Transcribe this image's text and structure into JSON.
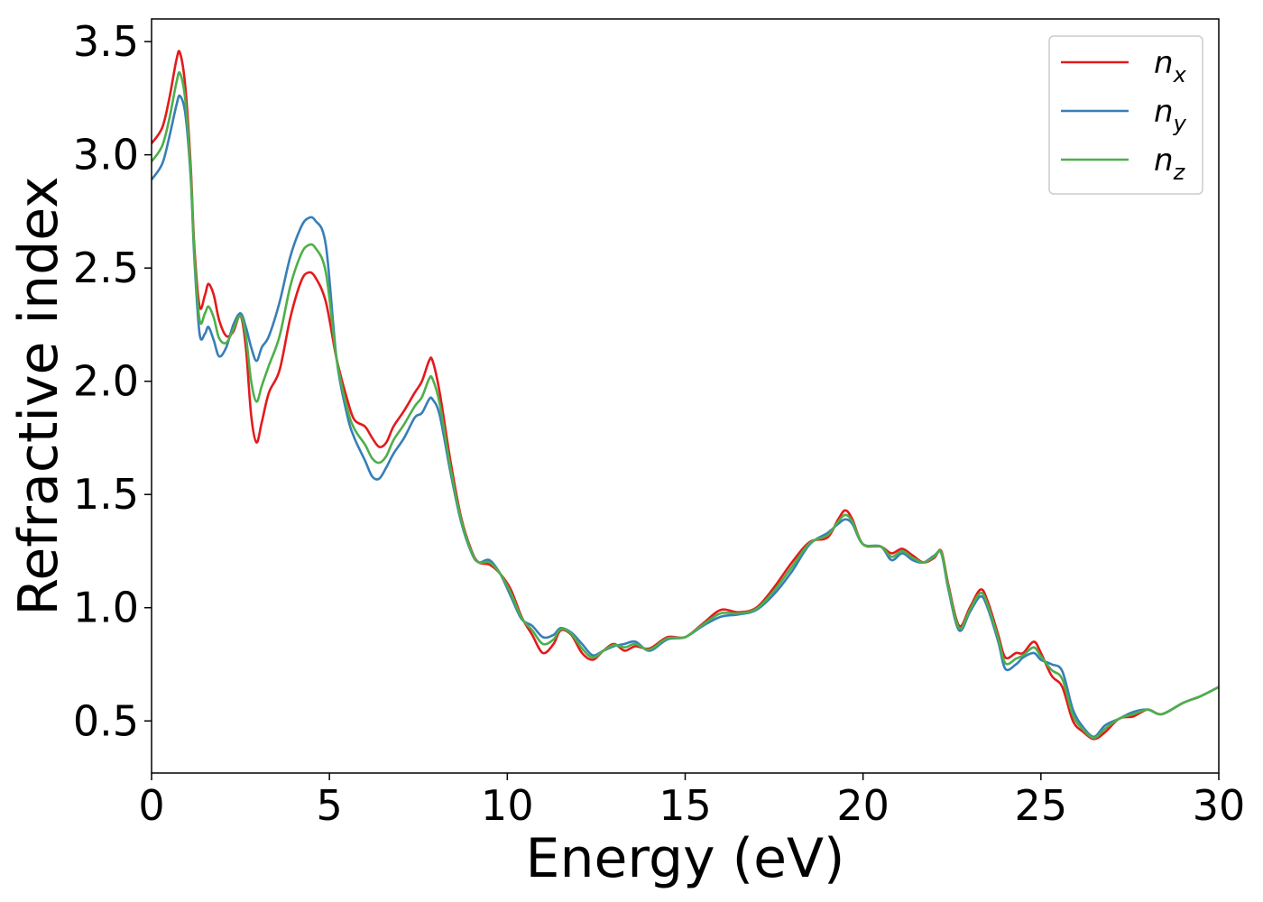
{
  "chart_data": {
    "type": "line",
    "xlabel": "Energy (eV)",
    "ylabel": "Refractive index",
    "xlim": [
      0,
      30
    ],
    "ylim": [
      0.27,
      3.6
    ],
    "xticks": [
      "0",
      "5",
      "10",
      "15",
      "20",
      "25",
      "30"
    ],
    "yticks": [
      "0.5",
      "1.0",
      "1.5",
      "2.0",
      "2.5",
      "3.0",
      "3.5"
    ],
    "grid": false,
    "legend_position": "top-right",
    "series": [
      {
        "name": "n",
        "subscript": "x",
        "color": "#e41a1c",
        "points": [
          [
            0,
            3.05
          ],
          [
            0.3,
            3.12
          ],
          [
            0.5,
            3.25
          ],
          [
            0.7,
            3.42
          ],
          [
            0.8,
            3.45
          ],
          [
            0.95,
            3.3
          ],
          [
            1.1,
            2.95
          ],
          [
            1.2,
            2.6
          ],
          [
            1.35,
            2.33
          ],
          [
            1.5,
            2.38
          ],
          [
            1.6,
            2.43
          ],
          [
            1.75,
            2.38
          ],
          [
            1.9,
            2.27
          ],
          [
            2.1,
            2.2
          ],
          [
            2.3,
            2.22
          ],
          [
            2.5,
            2.29
          ],
          [
            2.65,
            2.15
          ],
          [
            2.8,
            1.85
          ],
          [
            2.95,
            1.73
          ],
          [
            3.1,
            1.82
          ],
          [
            3.3,
            1.95
          ],
          [
            3.6,
            2.05
          ],
          [
            3.9,
            2.28
          ],
          [
            4.2,
            2.44
          ],
          [
            4.4,
            2.48
          ],
          [
            4.6,
            2.46
          ],
          [
            4.9,
            2.35
          ],
          [
            5.2,
            2.1
          ],
          [
            5.5,
            1.92
          ],
          [
            5.7,
            1.83
          ],
          [
            6.0,
            1.8
          ],
          [
            6.2,
            1.75
          ],
          [
            6.4,
            1.71
          ],
          [
            6.6,
            1.73
          ],
          [
            6.8,
            1.8
          ],
          [
            7.1,
            1.87
          ],
          [
            7.4,
            1.95
          ],
          [
            7.6,
            2.0
          ],
          [
            7.8,
            2.09
          ],
          [
            7.9,
            2.09
          ],
          [
            8.1,
            1.95
          ],
          [
            8.4,
            1.65
          ],
          [
            8.7,
            1.4
          ],
          [
            9.0,
            1.25
          ],
          [
            9.2,
            1.2
          ],
          [
            9.5,
            1.19
          ],
          [
            9.8,
            1.15
          ],
          [
            10.1,
            1.08
          ],
          [
            10.4,
            0.96
          ],
          [
            10.7,
            0.88
          ],
          [
            11.0,
            0.8
          ],
          [
            11.3,
            0.84
          ],
          [
            11.5,
            0.9
          ],
          [
            11.8,
            0.88
          ],
          [
            12.1,
            0.8
          ],
          [
            12.4,
            0.77
          ],
          [
            12.7,
            0.81
          ],
          [
            13.0,
            0.84
          ],
          [
            13.3,
            0.81
          ],
          [
            13.6,
            0.83
          ],
          [
            14.0,
            0.82
          ],
          [
            14.5,
            0.87
          ],
          [
            15.0,
            0.87
          ],
          [
            15.5,
            0.93
          ],
          [
            16.0,
            0.99
          ],
          [
            16.5,
            0.98
          ],
          [
            17.0,
            1.0
          ],
          [
            17.5,
            1.09
          ],
          [
            18.0,
            1.2
          ],
          [
            18.5,
            1.29
          ],
          [
            19.0,
            1.31
          ],
          [
            19.3,
            1.39
          ],
          [
            19.5,
            1.43
          ],
          [
            19.7,
            1.39
          ],
          [
            20.0,
            1.28
          ],
          [
            20.5,
            1.27
          ],
          [
            20.8,
            1.24
          ],
          [
            21.1,
            1.26
          ],
          [
            21.4,
            1.23
          ],
          [
            21.7,
            1.2
          ],
          [
            22.0,
            1.22
          ],
          [
            22.2,
            1.25
          ],
          [
            22.4,
            1.1
          ],
          [
            22.7,
            0.92
          ],
          [
            23.0,
            1.0
          ],
          [
            23.3,
            1.08
          ],
          [
            23.5,
            1.03
          ],
          [
            23.8,
            0.88
          ],
          [
            24.0,
            0.78
          ],
          [
            24.3,
            0.8
          ],
          [
            24.5,
            0.8
          ],
          [
            24.8,
            0.85
          ],
          [
            25.0,
            0.8
          ],
          [
            25.3,
            0.7
          ],
          [
            25.6,
            0.65
          ],
          [
            25.9,
            0.5
          ],
          [
            26.2,
            0.45
          ],
          [
            26.5,
            0.42
          ],
          [
            26.8,
            0.45
          ],
          [
            27.2,
            0.51
          ],
          [
            27.6,
            0.52
          ],
          [
            28.0,
            0.55
          ],
          [
            28.4,
            0.53
          ],
          [
            29.0,
            0.58
          ],
          [
            29.5,
            0.61
          ],
          [
            30.0,
            0.65
          ]
        ]
      },
      {
        "name": "n",
        "subscript": "y",
        "color": "#377eb8",
        "points": [
          [
            0,
            2.89
          ],
          [
            0.3,
            2.96
          ],
          [
            0.5,
            3.08
          ],
          [
            0.7,
            3.22
          ],
          [
            0.8,
            3.26
          ],
          [
            0.95,
            3.18
          ],
          [
            1.1,
            2.9
          ],
          [
            1.2,
            2.55
          ],
          [
            1.35,
            2.21
          ],
          [
            1.5,
            2.21
          ],
          [
            1.6,
            2.24
          ],
          [
            1.75,
            2.18
          ],
          [
            1.9,
            2.11
          ],
          [
            2.1,
            2.15
          ],
          [
            2.3,
            2.25
          ],
          [
            2.5,
            2.3
          ],
          [
            2.65,
            2.24
          ],
          [
            2.8,
            2.15
          ],
          [
            2.95,
            2.09
          ],
          [
            3.1,
            2.15
          ],
          [
            3.3,
            2.2
          ],
          [
            3.6,
            2.35
          ],
          [
            3.9,
            2.55
          ],
          [
            4.2,
            2.68
          ],
          [
            4.4,
            2.72
          ],
          [
            4.6,
            2.71
          ],
          [
            4.9,
            2.6
          ],
          [
            5.2,
            2.1
          ],
          [
            5.5,
            1.85
          ],
          [
            5.7,
            1.75
          ],
          [
            6.0,
            1.65
          ],
          [
            6.2,
            1.58
          ],
          [
            6.4,
            1.57
          ],
          [
            6.6,
            1.62
          ],
          [
            6.8,
            1.68
          ],
          [
            7.1,
            1.75
          ],
          [
            7.4,
            1.84
          ],
          [
            7.6,
            1.86
          ],
          [
            7.8,
            1.92
          ],
          [
            7.9,
            1.92
          ],
          [
            8.1,
            1.85
          ],
          [
            8.4,
            1.6
          ],
          [
            8.7,
            1.38
          ],
          [
            9.0,
            1.24
          ],
          [
            9.2,
            1.2
          ],
          [
            9.5,
            1.21
          ],
          [
            9.8,
            1.15
          ],
          [
            10.1,
            1.05
          ],
          [
            10.4,
            0.95
          ],
          [
            10.7,
            0.92
          ],
          [
            11.0,
            0.87
          ],
          [
            11.3,
            0.88
          ],
          [
            11.5,
            0.91
          ],
          [
            11.8,
            0.89
          ],
          [
            12.1,
            0.84
          ],
          [
            12.4,
            0.79
          ],
          [
            12.7,
            0.81
          ],
          [
            13.0,
            0.83
          ],
          [
            13.3,
            0.84
          ],
          [
            13.6,
            0.85
          ],
          [
            14.0,
            0.81
          ],
          [
            14.5,
            0.86
          ],
          [
            15.0,
            0.87
          ],
          [
            15.5,
            0.92
          ],
          [
            16.0,
            0.96
          ],
          [
            16.5,
            0.97
          ],
          [
            17.0,
            0.99
          ],
          [
            17.5,
            1.06
          ],
          [
            18.0,
            1.16
          ],
          [
            18.5,
            1.28
          ],
          [
            19.0,
            1.33
          ],
          [
            19.3,
            1.37
          ],
          [
            19.5,
            1.39
          ],
          [
            19.7,
            1.37
          ],
          [
            20.0,
            1.28
          ],
          [
            20.5,
            1.27
          ],
          [
            20.8,
            1.21
          ],
          [
            21.1,
            1.24
          ],
          [
            21.4,
            1.21
          ],
          [
            21.7,
            1.2
          ],
          [
            22.0,
            1.23
          ],
          [
            22.2,
            1.24
          ],
          [
            22.4,
            1.08
          ],
          [
            22.7,
            0.9
          ],
          [
            23.0,
            0.98
          ],
          [
            23.3,
            1.05
          ],
          [
            23.5,
            1.0
          ],
          [
            23.8,
            0.85
          ],
          [
            24.0,
            0.73
          ],
          [
            24.3,
            0.75
          ],
          [
            24.5,
            0.78
          ],
          [
            24.8,
            0.8
          ],
          [
            25.0,
            0.77
          ],
          [
            25.3,
            0.75
          ],
          [
            25.6,
            0.72
          ],
          [
            25.9,
            0.55
          ],
          [
            26.2,
            0.47
          ],
          [
            26.5,
            0.43
          ],
          [
            26.8,
            0.48
          ],
          [
            27.2,
            0.51
          ],
          [
            27.6,
            0.54
          ],
          [
            28.0,
            0.55
          ],
          [
            28.4,
            0.53
          ],
          [
            29.0,
            0.58
          ],
          [
            29.5,
            0.61
          ],
          [
            30.0,
            0.65
          ]
        ]
      },
      {
        "name": "n",
        "subscript": "z",
        "color": "#4daf4a",
        "points": [
          [
            0,
            2.97
          ],
          [
            0.3,
            3.04
          ],
          [
            0.5,
            3.16
          ],
          [
            0.7,
            3.32
          ],
          [
            0.8,
            3.36
          ],
          [
            0.95,
            3.24
          ],
          [
            1.1,
            2.92
          ],
          [
            1.2,
            2.57
          ],
          [
            1.35,
            2.27
          ],
          [
            1.5,
            2.3
          ],
          [
            1.6,
            2.33
          ],
          [
            1.75,
            2.28
          ],
          [
            1.9,
            2.19
          ],
          [
            2.1,
            2.17
          ],
          [
            2.3,
            2.23
          ],
          [
            2.5,
            2.29
          ],
          [
            2.65,
            2.2
          ],
          [
            2.8,
            2.0
          ],
          [
            2.95,
            1.91
          ],
          [
            3.1,
            1.98
          ],
          [
            3.3,
            2.07
          ],
          [
            3.6,
            2.2
          ],
          [
            3.9,
            2.42
          ],
          [
            4.2,
            2.56
          ],
          [
            4.4,
            2.6
          ],
          [
            4.6,
            2.59
          ],
          [
            4.9,
            2.48
          ],
          [
            5.2,
            2.1
          ],
          [
            5.5,
            1.88
          ],
          [
            5.7,
            1.79
          ],
          [
            6.0,
            1.72
          ],
          [
            6.2,
            1.66
          ],
          [
            6.4,
            1.64
          ],
          [
            6.6,
            1.67
          ],
          [
            6.8,
            1.74
          ],
          [
            7.1,
            1.81
          ],
          [
            7.4,
            1.89
          ],
          [
            7.6,
            1.93
          ],
          [
            7.8,
            2.01
          ],
          [
            7.9,
            2.01
          ],
          [
            8.1,
            1.9
          ],
          [
            8.4,
            1.62
          ],
          [
            8.7,
            1.39
          ],
          [
            9.0,
            1.245
          ],
          [
            9.2,
            1.2
          ],
          [
            9.5,
            1.2
          ],
          [
            9.8,
            1.15
          ],
          [
            10.1,
            1.065
          ],
          [
            10.4,
            0.955
          ],
          [
            10.7,
            0.9
          ],
          [
            11.0,
            0.84
          ],
          [
            11.3,
            0.86
          ],
          [
            11.5,
            0.905
          ],
          [
            11.8,
            0.885
          ],
          [
            12.1,
            0.82
          ],
          [
            12.4,
            0.78
          ],
          [
            12.7,
            0.81
          ],
          [
            13.0,
            0.835
          ],
          [
            13.3,
            0.825
          ],
          [
            13.6,
            0.84
          ],
          [
            14.0,
            0.815
          ],
          [
            14.5,
            0.865
          ],
          [
            15.0,
            0.87
          ],
          [
            15.5,
            0.925
          ],
          [
            16.0,
            0.975
          ],
          [
            16.5,
            0.975
          ],
          [
            17.0,
            0.995
          ],
          [
            17.5,
            1.075
          ],
          [
            18.0,
            1.18
          ],
          [
            18.5,
            1.285
          ],
          [
            19.0,
            1.32
          ],
          [
            19.3,
            1.38
          ],
          [
            19.5,
            1.41
          ],
          [
            19.7,
            1.38
          ],
          [
            20.0,
            1.28
          ],
          [
            20.5,
            1.27
          ],
          [
            20.8,
            1.225
          ],
          [
            21.1,
            1.25
          ],
          [
            21.4,
            1.22
          ],
          [
            21.7,
            1.2
          ],
          [
            22.0,
            1.225
          ],
          [
            22.2,
            1.245
          ],
          [
            22.4,
            1.09
          ],
          [
            22.7,
            0.91
          ],
          [
            23.0,
            0.99
          ],
          [
            23.3,
            1.065
          ],
          [
            23.5,
            1.015
          ],
          [
            23.8,
            0.865
          ],
          [
            24.0,
            0.755
          ],
          [
            24.3,
            0.775
          ],
          [
            24.5,
            0.79
          ],
          [
            24.8,
            0.825
          ],
          [
            25.0,
            0.785
          ],
          [
            25.3,
            0.725
          ],
          [
            25.6,
            0.685
          ],
          [
            25.9,
            0.525
          ],
          [
            26.2,
            0.46
          ],
          [
            26.5,
            0.425
          ],
          [
            26.8,
            0.465
          ],
          [
            27.2,
            0.51
          ],
          [
            27.6,
            0.53
          ],
          [
            28.0,
            0.55
          ],
          [
            28.4,
            0.53
          ],
          [
            29.0,
            0.58
          ],
          [
            29.5,
            0.61
          ],
          [
            30.0,
            0.65
          ]
        ]
      }
    ]
  }
}
